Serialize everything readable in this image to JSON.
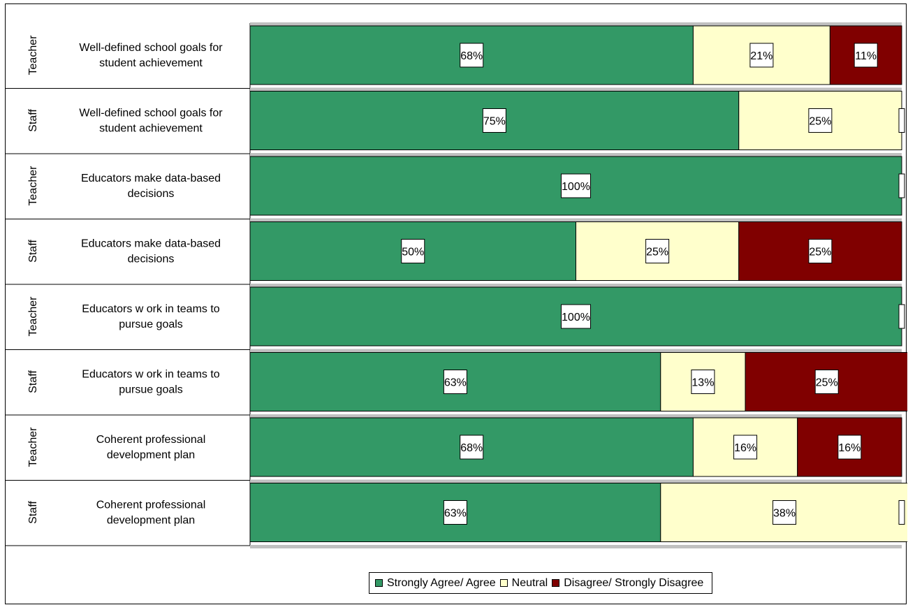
{
  "chart_data": {
    "type": "bar",
    "orientation": "horizontal",
    "stacked": true,
    "percent_scale": true,
    "groups": [
      "Teacher",
      "Staff",
      "Teacher",
      "Staff",
      "Teacher",
      "Staff",
      "Teacher",
      "Staff"
    ],
    "categories": [
      "Well-defined school goals for student achievement",
      "Well-defined school goals for student achievement",
      "Educators make data-based decisions",
      "Educators make data-based decisions",
      "Educators w ork in teams to pursue goals",
      "Educators w ork in teams to pursue goals",
      "Coherent professional development plan",
      "Coherent professional development plan"
    ],
    "category_lines": [
      [
        "Well-defined school goals for",
        "student achievement"
      ],
      [
        "Well-defined school goals for",
        "student achievement"
      ],
      [
        "Educators make data-based",
        "decisions"
      ],
      [
        "Educators make data-based",
        "decisions"
      ],
      [
        "Educators w ork in teams to",
        "pursue goals"
      ],
      [
        "Educators w ork in teams to",
        "pursue goals"
      ],
      [
        "Coherent professional",
        "development plan"
      ],
      [
        "Coherent professional",
        "development plan"
      ]
    ],
    "series": [
      {
        "name": "Strongly Agree/ Agree",
        "color": "#339966",
        "values": [
          68,
          75,
          100,
          50,
          100,
          63,
          68,
          63
        ]
      },
      {
        "name": "Neutral",
        "color": "#ffffcc",
        "values": [
          21,
          25,
          0,
          25,
          0,
          13,
          16,
          38
        ]
      },
      {
        "name": "Disagree/ Strongly Disagree",
        "color": "#800000",
        "values": [
          11,
          0,
          0,
          25,
          0,
          25,
          16,
          0
        ]
      }
    ],
    "data_labels": [
      [
        "68%",
        "21%",
        "11%"
      ],
      [
        "75%",
        "25%",
        null
      ],
      [
        "100%",
        null,
        null
      ],
      [
        "50%",
        "25%",
        "25%"
      ],
      [
        "100%",
        null,
        null
      ],
      [
        "63%",
        "13%",
        "25%"
      ],
      [
        "68%",
        "16%",
        "16%"
      ],
      [
        "63%",
        "38%",
        null
      ]
    ],
    "xlim": [
      0,
      100
    ],
    "legend_position": "bottom",
    "gridlines": false
  },
  "legend": {
    "items": [
      {
        "label": "Strongly Agree/ Agree",
        "color": "#339966"
      },
      {
        "label": "Neutral",
        "color": "#ffffcc"
      },
      {
        "label": "Disagree/ Strongly Disagree",
        "color": "#800000"
      }
    ]
  }
}
